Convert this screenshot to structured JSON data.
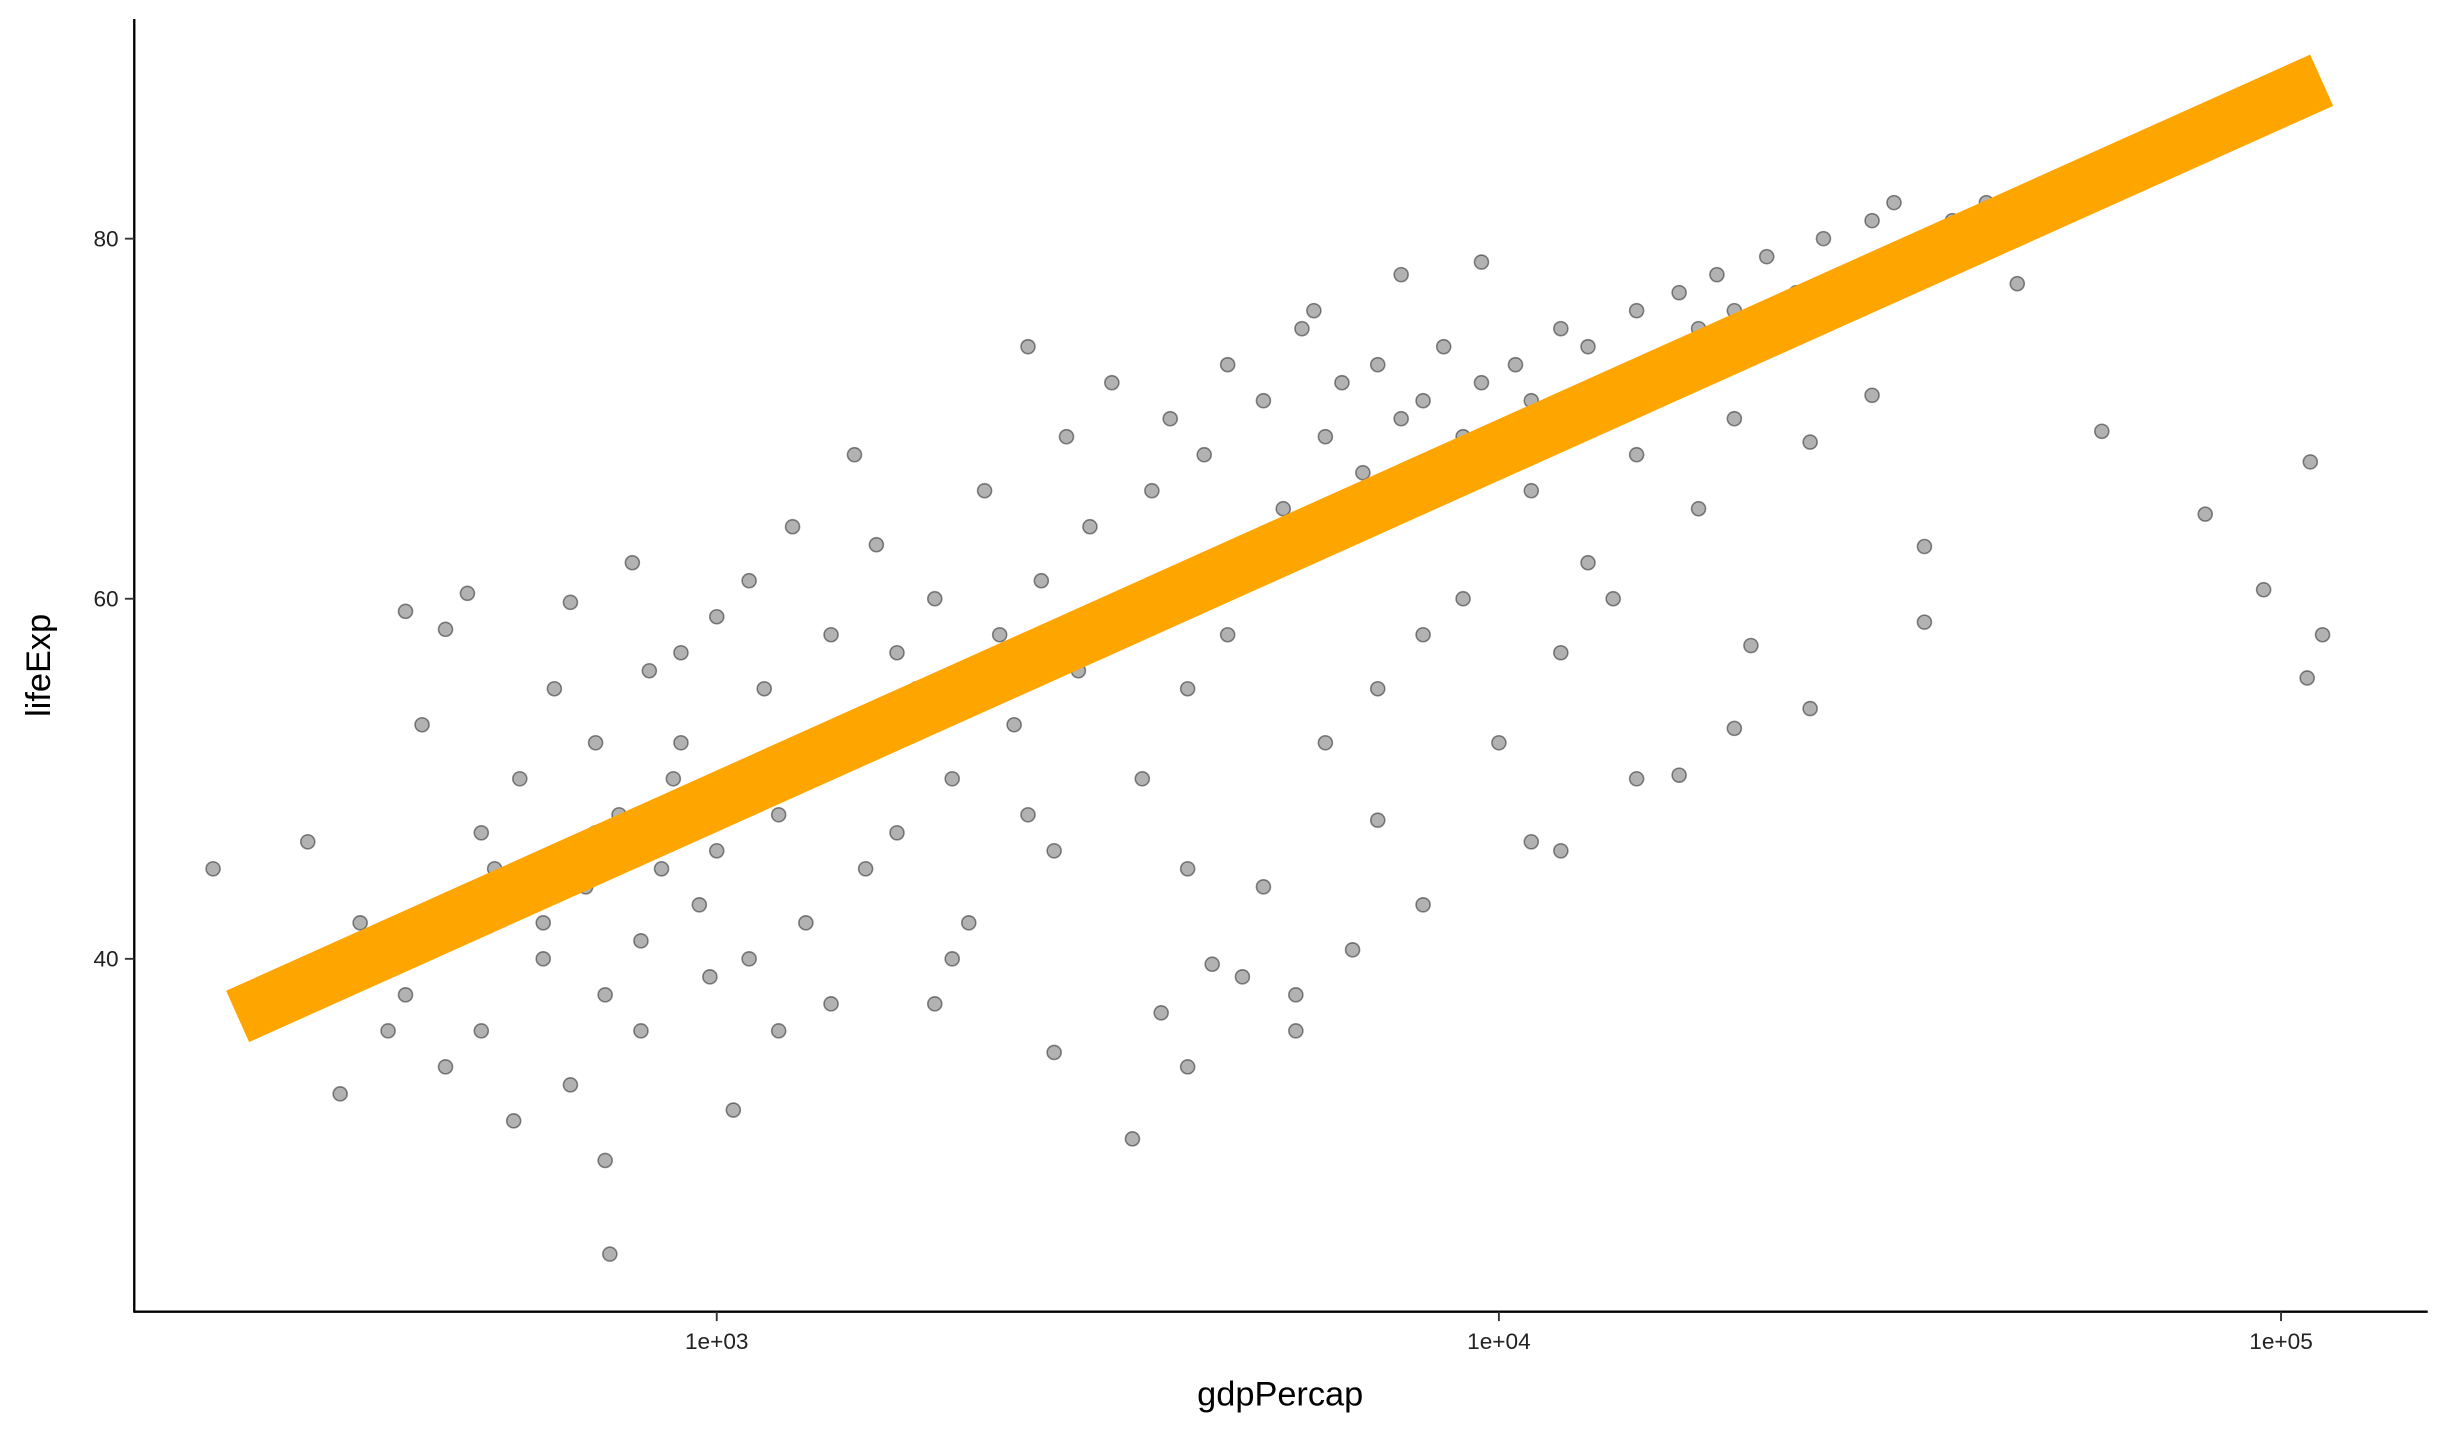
{
  "chart_data": {
    "type": "scatter",
    "x_label": "gdpPercap",
    "y_label": "lifeExp",
    "xscale": "log",
    "xlim": [
      180,
      154000
    ],
    "ylim": [
      20.4,
      92.2
    ],
    "xticks": [
      {
        "value": 1000,
        "label": "1e+03"
      },
      {
        "value": 10000,
        "label": "1e+04"
      },
      {
        "value": 100000,
        "label": "1e+05"
      }
    ],
    "yticks": [
      40,
      60,
      80
    ],
    "grid": false,
    "series": [
      {
        "type": "scatter",
        "color": "#000000",
        "opacity": 0.3,
        "x": [
          227,
          300,
          330,
          380,
          730,
          720,
          1050,
          3400,
          4000,
          59000,
          80000,
          95000,
          108000,
          109000,
          113000,
          35000,
          35000,
          25000,
          20000,
          21000,
          17000,
          15000,
          12000,
          11000,
          10000,
          7000,
          8000,
          6500,
          5500,
          5500,
          4700,
          4300,
          3700,
          2700,
          1400,
          1900,
          350,
          400,
          420,
          450,
          480,
          500,
          520,
          560,
          600,
          620,
          650,
          680,
          700,
          720,
          750,
          780,
          800,
          820,
          850,
          880,
          900,
          950,
          980,
          1000,
          400,
          450,
          500,
          550,
          600,
          650,
          700,
          800,
          900,
          1000,
          1100,
          1150,
          1200,
          1250,
          1300,
          1400,
          1500,
          1550,
          1600,
          1700,
          1800,
          1900,
          2000,
          2100,
          2200,
          2300,
          2400,
          2500,
          2600,
          2700,
          2800,
          2900,
          3000,
          1200,
          1500,
          2000,
          2500,
          1100,
          1300,
          1700,
          3200,
          3400,
          3600,
          3800,
          4000,
          4200,
          4500,
          4800,
          5000,
          5300,
          5600,
          6000,
          6300,
          6700,
          7000,
          7500,
          8000,
          8500,
          9000,
          9500,
          3500,
          4000,
          4500,
          5000,
          6000,
          7000,
          8000,
          9000,
          9500,
          5800,
          7500,
          10500,
          11000,
          12000,
          13000,
          14000,
          15000,
          16000,
          17000,
          18000,
          19000,
          20000,
          22000,
          24000,
          26000,
          28000,
          30000,
          32000,
          35000,
          38000,
          42000,
          46000,
          11000,
          13000,
          15000,
          18000,
          20000,
          25000,
          30000,
          12000,
          14000
        ],
        "values": [
          45,
          46.5,
          32.5,
          36,
          23.6,
          28.8,
          31.6,
          30,
          34,
          69.3,
          64.7,
          60.5,
          55.6,
          67.6,
          58,
          62.9,
          58.7,
          53.9,
          52.8,
          57.4,
          50.2,
          50,
          46,
          46.5,
          52,
          47.7,
          43,
          40.5,
          36,
          38,
          39,
          39.7,
          37,
          34.8,
          37.5,
          37.5,
          42,
          59.3,
          53,
          58.3,
          60.3,
          47,
          45,
          50,
          40,
          55,
          59.8,
          44,
          52,
          38,
          48,
          62,
          41,
          56,
          45,
          50,
          57,
          43,
          39,
          59,
          38,
          34,
          36,
          31,
          42,
          33,
          47,
          36,
          52,
          46,
          61,
          55,
          48,
          64,
          42,
          58,
          52,
          45,
          63,
          47,
          55,
          60,
          50,
          42,
          66,
          58,
          53,
          74,
          61,
          46,
          69,
          56,
          64,
          36,
          68,
          40,
          48,
          40,
          51,
          57,
          72,
          60,
          66,
          70,
          55,
          68,
          73,
          62,
          71,
          65,
          75,
          69,
          72,
          67,
          73,
          70,
          71,
          74,
          69,
          72,
          50,
          45,
          58,
          44,
          52,
          55,
          58,
          60,
          78.7,
          76,
          78,
          73,
          71,
          75,
          74,
          72,
          76,
          73,
          77,
          75,
          78,
          76,
          79,
          77,
          80,
          78,
          81,
          82,
          80,
          81,
          82,
          77.5,
          66,
          62,
          68,
          65,
          70,
          68.7,
          71.3,
          57,
          60
        ]
      },
      {
        "type": "line",
        "color": "#FFA500",
        "x": [
          244,
          112700
        ],
        "values": [
          36.8,
          88.8
        ]
      }
    ]
  }
}
